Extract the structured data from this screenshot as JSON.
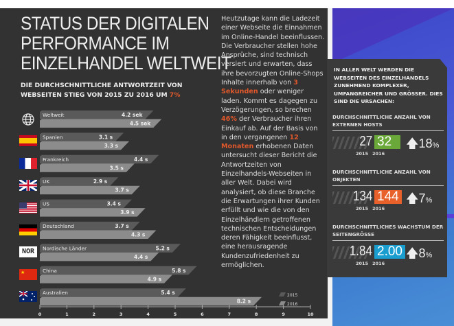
{
  "header": {
    "title_lines": [
      "STATUS DER DIGITALEN",
      "PERFORMANCE IM",
      "EINZELHANDEL WELTWEIT"
    ],
    "subtitle": "DIE DURCHSCHNITTLICHE ANTWORTZEIT VON WEBSEITEN STIEG VON 2015 ZU 2016 UM",
    "subtitle_highlight": "7%"
  },
  "body_text": [
    {
      "t": "Heutzutage kann die Ladezeit einer Webseite die Einnahmen im Online-Handel beeinflussen. Die Verbraucher stellen hohe Ansprüche, sind technisch versiert und erwarten, dass ihre bevorzugten Online-Shops Inhalte innerhalb von ",
      "hl": false
    },
    {
      "t": "3 Sekunden",
      "hl": true
    },
    {
      "t": " oder weniger laden. Kommt es dagegen zu Verzögerungen, so brechen ",
      "hl": false
    },
    {
      "t": "46%",
      "hl": true
    },
    {
      "t": " der Verbraucher ihren Einkauf ab. Auf der Basis von in den vergangenen ",
      "hl": false
    },
    {
      "t": "12 Monaten",
      "hl": true
    },
    {
      "t": " erhobenen Daten untersucht dieser Bericht die Antwortzeiten von Einzelhandels-Webseiten in aller Welt. Dabei wird analysiert, ob diese Branche die Erwartungen ihrer Kunden erfüllt und wie die von den Einzelhändlern getroffenen technischen Entscheidungen deren Fähigkeit beeinflusst, eine herausragende Kundenzufriedenheit zu ermöglichen.",
      "hl": false
    }
  ],
  "colors": {
    "bg": "#323232",
    "bar_2015": "#5a5a5a",
    "bar_2016": "#8c8c8c",
    "accent_orange": "#e2582a",
    "green": "#6aa83a",
    "orange": "#e8602a",
    "blue": "#1a9ed0"
  },
  "chart_data": {
    "type": "bar",
    "orientation": "horizontal",
    "categories": [
      "Weltweit",
      "Spanien",
      "Frankreich",
      "UK",
      "US",
      "Deutschland",
      "Nordische Länder",
      "China",
      "Australien"
    ],
    "icons": [
      "globe-icon",
      "flag-spain",
      "flag-france",
      "flag-uk",
      "flag-us",
      "flag-germany",
      "nor-badge",
      "flag-china",
      "flag-australia"
    ],
    "nor_badge": "NOR",
    "series": [
      {
        "name": "2015",
        "values": [
          4.2,
          3.1,
          4.4,
          2.9,
          3.4,
          3.7,
          5.2,
          5.8,
          5.4
        ],
        "labels": [
          "4.2 sek",
          "3.1 s",
          "4.4 s",
          "2.9 s",
          "3.4 s",
          "3.7 s",
          "5.2 s",
          "5.8 s",
          "5.4 s"
        ]
      },
      {
        "name": "2016",
        "values": [
          4.5,
          3.3,
          3.5,
          3.7,
          3.9,
          4.3,
          4.4,
          4.9,
          8.2
        ],
        "labels": [
          "4.5 sek",
          "3.3 s",
          "3.5 s",
          "3.7 s",
          "3.9 s",
          "4.3 s",
          "4.4 s",
          "4.9 s",
          "8.2 s"
        ]
      }
    ],
    "xlim": [
      0,
      10
    ],
    "xticks": [
      "0",
      "1",
      "2",
      "3",
      "4",
      "5",
      "6",
      "7",
      "8",
      "9",
      "10"
    ],
    "legend_position": "bottom-right",
    "grid": false
  },
  "side_card": {
    "intro": "IN ALLER WELT WERDEN DIE WEBSEITEN DES EINZELHANDELS ZUNEHMEND KOMPLEXER, UMFANGREICHER UND GRÖSSER. DIES SIND DIE URSACHEN:",
    "metrics": [
      {
        "label": "DURCHSCHNITTLICHE ANZAHL VON EXTERNEN HOSTS",
        "v2015": "27",
        "v2016": "32",
        "change": "18",
        "unit": "%",
        "year1": "2015",
        "year2": "2016",
        "color": "#6aa83a"
      },
      {
        "label": "DURCHSCHNITTLICHE ANZAHL VON OBJEKTEN",
        "v2015": "134",
        "v2016": "144",
        "change": "7",
        "unit": "%",
        "year1": "2015",
        "year2": "2016",
        "color": "#e8602a"
      },
      {
        "label": "DURCHSCHNITTLICHES WACHSTUM DER SEITENGRÖSSE",
        "v2015": "1.84",
        "v2016": "2.00",
        "change": "8",
        "unit": "%",
        "year1": "2015",
        "year2": "2016",
        "color": "#1a9ed0"
      }
    ]
  }
}
